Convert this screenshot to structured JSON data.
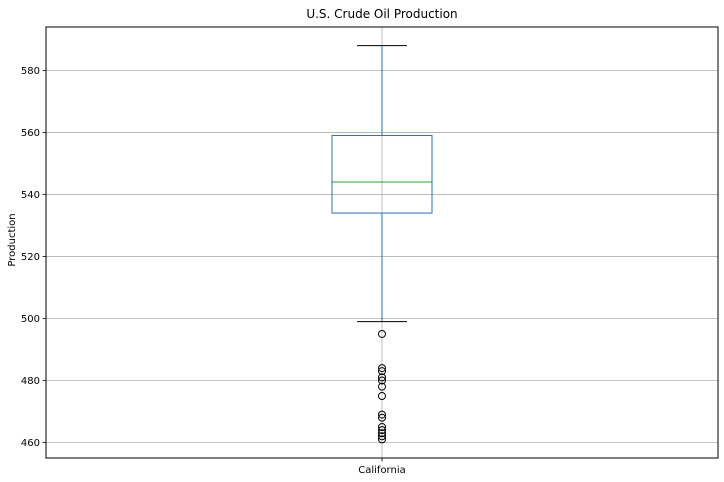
{
  "chart_data": {
    "type": "box",
    "title": "U.S. Crude Oil Production",
    "xlabel": "",
    "ylabel": "Production",
    "categories": [
      "California"
    ],
    "ylim": [
      455,
      594
    ],
    "yticks": [
      460,
      480,
      500,
      520,
      540,
      560,
      580
    ],
    "grid": true,
    "boxes": [
      {
        "category": "California",
        "whisker_low": 499,
        "q1": 534,
        "median": 544,
        "q3": 559,
        "whisker_high": 588,
        "outliers": [
          495,
          484,
          483,
          481,
          480,
          478,
          475,
          469,
          468,
          465,
          464,
          463,
          462,
          461
        ]
      }
    ],
    "colors": {
      "box": "#1f77b4",
      "median": "#2ca02c",
      "whisker_cap": "#000000",
      "grid": "#b0b0b0",
      "outlier_edge": "#000000"
    }
  }
}
